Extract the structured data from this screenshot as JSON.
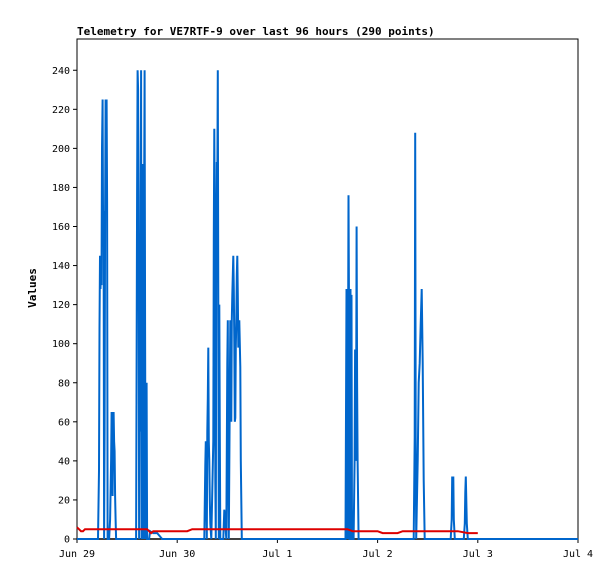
{
  "chart_data": {
    "type": "line",
    "title": "Telemetry for VE7RTF-9 over last 96 hours (290 points)",
    "xlabel": "",
    "ylabel": "Values",
    "x_ticks": [
      "Jun 29",
      "Jun 30",
      "Jul 1",
      "Jul 2",
      "Jul 3",
      "Jul 4"
    ],
    "xlim": [
      0,
      5
    ],
    "ylim": [
      0,
      256
    ],
    "y_ticks": [
      0,
      20,
      40,
      60,
      80,
      100,
      120,
      140,
      160,
      180,
      200,
      220,
      240
    ],
    "grid": false,
    "legend": "none",
    "series": [
      {
        "color": "#0066cc",
        "points": [
          [
            0.0,
            0
          ],
          [
            0.21,
            0
          ],
          [
            0.22,
            35
          ],
          [
            0.225,
            108
          ],
          [
            0.23,
            145
          ],
          [
            0.235,
            128
          ],
          [
            0.24,
            145
          ],
          [
            0.245,
            130
          ],
          [
            0.25,
            200
          ],
          [
            0.255,
            225
          ],
          [
            0.26,
            155
          ],
          [
            0.265,
            168
          ],
          [
            0.27,
            0
          ],
          [
            0.275,
            55
          ],
          [
            0.28,
            168
          ],
          [
            0.285,
            225
          ],
          [
            0.29,
            172
          ],
          [
            0.295,
            225
          ],
          [
            0.3,
            172
          ],
          [
            0.305,
            0
          ],
          [
            0.32,
            0
          ],
          [
            0.33,
            10
          ],
          [
            0.34,
            40
          ],
          [
            0.345,
            65
          ],
          [
            0.35,
            40
          ],
          [
            0.355,
            22
          ],
          [
            0.36,
            55
          ],
          [
            0.365,
            65
          ],
          [
            0.37,
            50
          ],
          [
            0.375,
            45
          ],
          [
            0.38,
            22
          ],
          [
            0.385,
            10
          ],
          [
            0.39,
            0
          ],
          [
            0.59,
            0
          ],
          [
            0.6,
            178
          ],
          [
            0.605,
            240
          ],
          [
            0.61,
            230
          ],
          [
            0.615,
            175
          ],
          [
            0.62,
            0
          ],
          [
            0.625,
            108
          ],
          [
            0.63,
            55
          ],
          [
            0.635,
            145
          ],
          [
            0.64,
            240
          ],
          [
            0.645,
            0
          ],
          [
            0.65,
            85
          ],
          [
            0.655,
            192
          ],
          [
            0.66,
            85
          ],
          [
            0.665,
            0
          ],
          [
            0.67,
            175
          ],
          [
            0.675,
            240
          ],
          [
            0.68,
            105
          ],
          [
            0.685,
            0
          ],
          [
            0.69,
            40
          ],
          [
            0.695,
            80
          ],
          [
            0.7,
            0
          ],
          [
            0.72,
            0
          ],
          [
            0.73,
            4
          ],
          [
            0.76,
            3
          ],
          [
            0.8,
            3
          ],
          [
            0.85,
            0
          ],
          [
            1.27,
            0
          ],
          [
            1.28,
            38
          ],
          [
            1.285,
            50
          ],
          [
            1.29,
            20
          ],
          [
            1.295,
            0
          ],
          [
            1.3,
            55
          ],
          [
            1.305,
            72
          ],
          [
            1.31,
            98
          ],
          [
            1.315,
            50
          ],
          [
            1.32,
            40
          ],
          [
            1.325,
            20
          ],
          [
            1.33,
            8
          ],
          [
            1.34,
            0
          ],
          [
            1.36,
            50
          ],
          [
            1.365,
            155
          ],
          [
            1.37,
            210
          ],
          [
            1.375,
            155
          ],
          [
            1.38,
            30
          ],
          [
            1.385,
            0
          ],
          [
            1.39,
            150
          ],
          [
            1.395,
            193
          ],
          [
            1.4,
            180
          ],
          [
            1.405,
            240
          ],
          [
            1.41,
            120
          ],
          [
            1.415,
            0
          ],
          [
            1.42,
            120
          ],
          [
            1.425,
            55
          ],
          [
            1.43,
            0
          ],
          [
            1.46,
            0
          ],
          [
            1.47,
            15
          ],
          [
            1.48,
            8
          ],
          [
            1.49,
            0
          ],
          [
            1.5,
            90
          ],
          [
            1.505,
            112
          ],
          [
            1.51,
            30
          ],
          [
            1.515,
            0
          ],
          [
            1.53,
            112
          ],
          [
            1.535,
            85
          ],
          [
            1.54,
            60
          ],
          [
            1.545,
            112
          ],
          [
            1.55,
            125
          ],
          [
            1.555,
            135
          ],
          [
            1.56,
            145
          ],
          [
            1.565,
            128
          ],
          [
            1.57,
            100
          ],
          [
            1.575,
            60
          ],
          [
            1.58,
            62
          ],
          [
            1.585,
            98
          ],
          [
            1.59,
            112
          ],
          [
            1.595,
            135
          ],
          [
            1.6,
            145
          ],
          [
            1.605,
            125
          ],
          [
            1.61,
            98
          ],
          [
            1.615,
            108
          ],
          [
            1.62,
            112
          ],
          [
            1.625,
            100
          ],
          [
            1.63,
            88
          ],
          [
            1.635,
            40
          ],
          [
            1.64,
            20
          ],
          [
            1.645,
            0
          ],
          [
            2.68,
            0
          ],
          [
            2.69,
            128
          ],
          [
            2.695,
            65
          ],
          [
            2.7,
            0
          ],
          [
            2.705,
            89
          ],
          [
            2.71,
            176
          ],
          [
            2.715,
            118
          ],
          [
            2.72,
            0
          ],
          [
            2.725,
            0
          ],
          [
            2.73,
            128
          ],
          [
            2.735,
            0
          ],
          [
            2.74,
            125
          ],
          [
            2.745,
            0
          ],
          [
            2.76,
            0
          ],
          [
            2.77,
            40
          ],
          [
            2.775,
            97
          ],
          [
            2.78,
            40
          ],
          [
            2.785,
            60
          ],
          [
            2.79,
            160
          ],
          [
            2.795,
            80
          ],
          [
            2.8,
            40
          ],
          [
            2.81,
            0
          ],
          [
            3.36,
            0
          ],
          [
            3.37,
            52
          ],
          [
            3.375,
            208
          ],
          [
            3.38,
            52
          ],
          [
            3.385,
            0
          ],
          [
            3.4,
            40
          ],
          [
            3.41,
            80
          ],
          [
            3.42,
            90
          ],
          [
            3.43,
            110
          ],
          [
            3.44,
            128
          ],
          [
            3.45,
            90
          ],
          [
            3.46,
            30
          ],
          [
            3.47,
            0
          ],
          [
            3.73,
            0
          ],
          [
            3.74,
            10
          ],
          [
            3.745,
            32
          ],
          [
            3.75,
            22
          ],
          [
            3.755,
            32
          ],
          [
            3.76,
            10
          ],
          [
            3.77,
            0
          ],
          [
            3.86,
            0
          ],
          [
            3.87,
            8
          ],
          [
            3.875,
            24
          ],
          [
            3.88,
            32
          ],
          [
            3.885,
            20
          ],
          [
            3.89,
            8
          ],
          [
            3.9,
            0
          ],
          [
            5.0,
            0
          ]
        ]
      },
      {
        "color": "#dd0000",
        "points": [
          [
            0.0,
            6
          ],
          [
            0.02,
            5
          ],
          [
            0.04,
            4
          ],
          [
            0.06,
            4
          ],
          [
            0.08,
            5
          ],
          [
            0.1,
            5
          ],
          [
            0.7,
            5
          ],
          [
            0.72,
            4
          ],
          [
            0.74,
            3
          ],
          [
            0.76,
            4
          ],
          [
            0.78,
            4
          ],
          [
            0.8,
            4
          ],
          [
            0.9,
            4
          ],
          [
            1.0,
            4
          ],
          [
            1.1,
            4
          ],
          [
            1.15,
            5
          ],
          [
            1.2,
            5
          ],
          [
            2.7,
            5
          ],
          [
            2.75,
            4
          ],
          [
            3.0,
            4
          ],
          [
            3.05,
            3
          ],
          [
            3.1,
            3
          ],
          [
            3.2,
            3
          ],
          [
            3.25,
            4
          ],
          [
            3.4,
            4
          ],
          [
            3.6,
            4
          ],
          [
            3.8,
            4
          ],
          [
            3.9,
            3
          ],
          [
            4.0,
            3
          ]
        ]
      }
    ]
  }
}
